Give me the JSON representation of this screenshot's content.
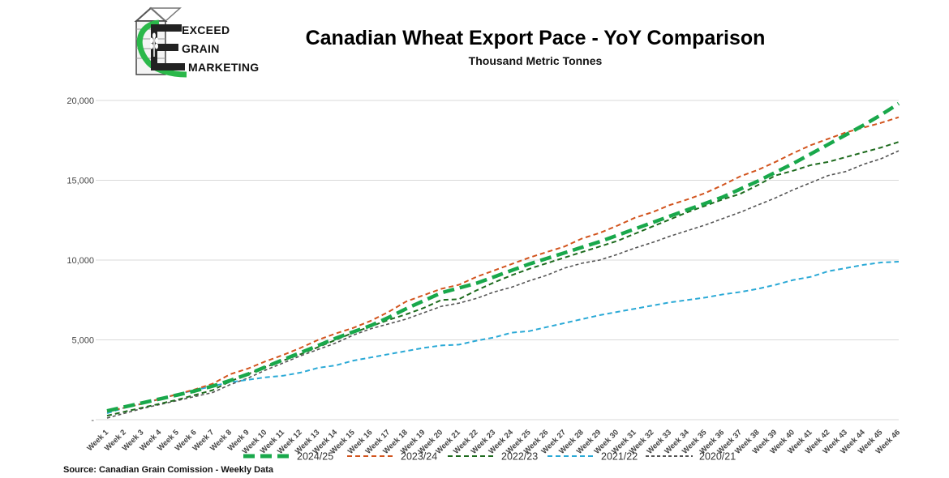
{
  "logo": {
    "line1": "EXCEED",
    "line2": "GRAIN",
    "line3": "MARKETING"
  },
  "source_note": "Source: Canadian Grain Comission - Weekly Data",
  "colors": {
    "s2024": "#19a84b",
    "s2023": "#d2541e",
    "s2022": "#1e6b1e",
    "s2021": "#2aa9d6",
    "s2020": "#555555",
    "grid": "#d9d9d9",
    "logo_green": "#2bb84a"
  },
  "chart_data": {
    "type": "line",
    "title": "Canadian Wheat Export Pace - YoY Comparison",
    "subtitle": "Thousand Metric Tonnes",
    "xlabel": "",
    "ylabel": "",
    "ylim": [
      0,
      20000
    ],
    "yticks": [
      0,
      5000,
      10000,
      15000,
      20000
    ],
    "ytick_labels": [
      "-",
      "5,000",
      "10,000",
      "15,000",
      "20,000"
    ],
    "grid": true,
    "legend_position": "bottom",
    "categories": [
      "Week 1",
      "Week 2",
      "Week 3",
      "Week 4",
      "Week 5",
      "Week 6",
      "Week 7",
      "Week 8",
      "Week 9",
      "Week 10",
      "Week 11",
      "Week 12",
      "Week 13",
      "Week 14",
      "Week 15",
      "Week 16",
      "Week 17",
      "Week 18",
      "Week 19",
      "Week 20",
      "Week 21",
      "Week 22",
      "Week 23",
      "Week 24",
      "Week 25",
      "Week 26",
      "Week 27",
      "Week 28",
      "Week 29",
      "Week 30",
      "Week 31",
      "Week 32",
      "Week 33",
      "Week 34",
      "Week 35",
      "Week 36",
      "Week 37",
      "Week 38",
      "Week 39",
      "Week 40",
      "Week 41",
      "Week 42",
      "Week 43",
      "Week 44",
      "Week 45",
      "Week 46"
    ],
    "series": [
      {
        "name": "2024/25",
        "style": "thick-dash",
        "values": [
          550,
          800,
          1050,
          1300,
          1550,
          1800,
          2100,
          2450,
          2850,
          3300,
          3750,
          4200,
          4650,
          5100,
          5500,
          5900,
          6400,
          6950,
          7450,
          7950,
          8250,
          8550,
          8950,
          9350,
          9750,
          10100,
          10450,
          10800,
          11150,
          11550,
          11950,
          12350,
          12750,
          13150,
          13550,
          13950,
          14450,
          14950,
          15500,
          16050,
          16650,
          17250,
          17850,
          18450,
          19100,
          19800
        ]
      },
      {
        "name": "2023/24",
        "style": "dash",
        "values": [
          500,
          750,
          1000,
          1300,
          1600,
          1900,
          2250,
          2850,
          3200,
          3650,
          4050,
          4500,
          5000,
          5400,
          5750,
          6200,
          6750,
          7400,
          7800,
          8200,
          8450,
          8950,
          9350,
          9750,
          10150,
          10500,
          10850,
          11350,
          11700,
          12150,
          12650,
          13000,
          13450,
          13800,
          14200,
          14700,
          15250,
          15650,
          16150,
          16700,
          17200,
          17600,
          18000,
          18300,
          18600,
          18950
        ]
      },
      {
        "name": "2022/23",
        "style": "dash",
        "values": [
          250,
          500,
          750,
          1000,
          1250,
          1550,
          1850,
          2400,
          2850,
          3300,
          3700,
          4100,
          4550,
          5000,
          5450,
          5850,
          6250,
          6600,
          7000,
          7500,
          7550,
          8100,
          8600,
          9050,
          9450,
          9800,
          10150,
          10500,
          10850,
          11200,
          11650,
          12100,
          12550,
          13000,
          13400,
          13800,
          14150,
          14700,
          15300,
          15600,
          15950,
          16150,
          16450,
          16750,
          17050,
          17400
        ]
      },
      {
        "name": "2021/22",
        "style": "dash",
        "values": [
          400,
          750,
          1000,
          1300,
          1600,
          1850,
          2100,
          2350,
          2500,
          2650,
          2750,
          2950,
          3250,
          3400,
          3700,
          3900,
          4100,
          4300,
          4500,
          4650,
          4700,
          4950,
          5150,
          5450,
          5550,
          5800,
          6050,
          6300,
          6550,
          6750,
          6950,
          7150,
          7350,
          7500,
          7650,
          7850,
          8000,
          8200,
          8450,
          8750,
          8950,
          9300,
          9500,
          9700,
          9850,
          9900
        ]
      },
      {
        "name": "2020/21",
        "style": "dash",
        "values": [
          100,
          400,
          700,
          950,
          1200,
          1450,
          1700,
          2200,
          2600,
          3100,
          3550,
          4000,
          4400,
          4800,
          5300,
          5700,
          6000,
          6300,
          6700,
          7100,
          7300,
          7600,
          8000,
          8300,
          8700,
          9050,
          9500,
          9800,
          10000,
          10350,
          10750,
          11100,
          11500,
          11850,
          12200,
          12600,
          13000,
          13450,
          13900,
          14400,
          14850,
          15300,
          15550,
          16000,
          16350,
          16850
        ]
      }
    ]
  }
}
